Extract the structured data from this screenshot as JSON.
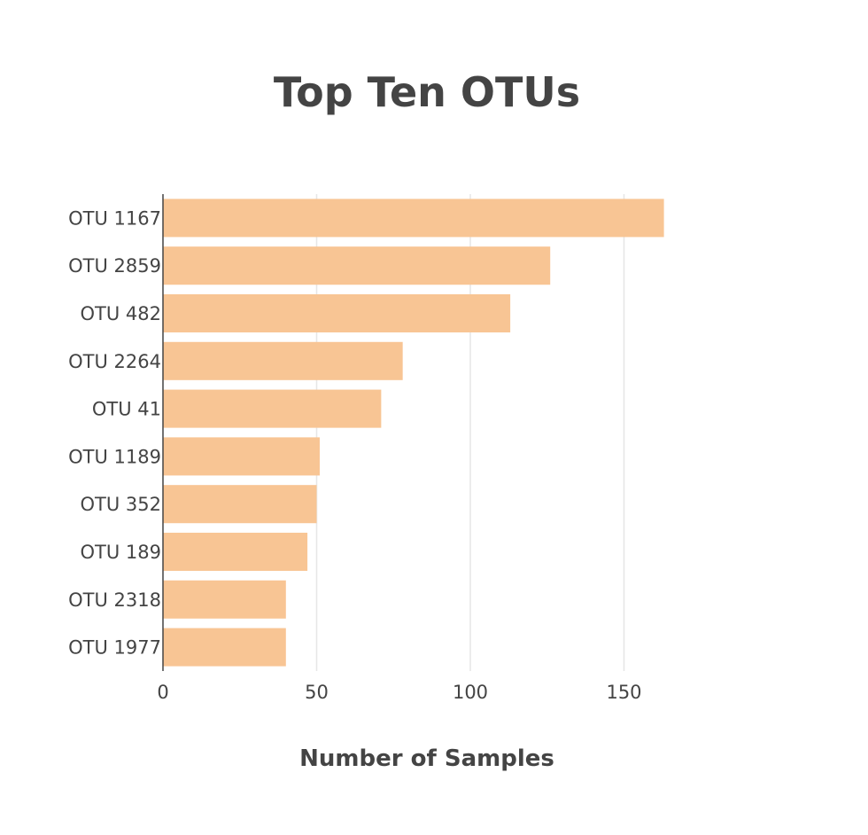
{
  "chart_data": {
    "type": "bar",
    "orientation": "horizontal",
    "title": "Top Ten OTUs",
    "xlabel": "Number of Samples",
    "ylabel": "",
    "xlim": [
      0,
      200
    ],
    "xticks": [
      0,
      50,
      100,
      150
    ],
    "grid": true,
    "legend": "none",
    "bar_color": "#f8c594",
    "categories": [
      "OTU 1167",
      "OTU 2859",
      "OTU 482",
      "OTU 2264",
      "OTU 41",
      "OTU 1189",
      "OTU 352",
      "OTU 189",
      "OTU 2318",
      "OTU 1977"
    ],
    "values": [
      163,
      126,
      113,
      78,
      71,
      51,
      50,
      47,
      40,
      40
    ]
  }
}
